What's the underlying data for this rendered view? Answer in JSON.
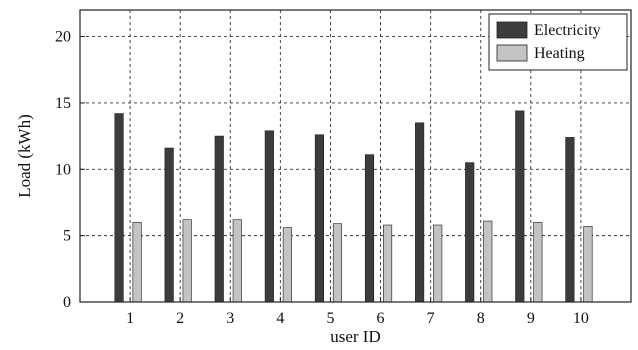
{
  "chart_data": {
    "type": "bar",
    "categories": [
      "1",
      "2",
      "3",
      "4",
      "5",
      "6",
      "7",
      "8",
      "9",
      "10"
    ],
    "series": [
      {
        "name": "Electricity",
        "color": "#3c3c3c",
        "values": [
          14.2,
          11.6,
          12.5,
          12.9,
          12.6,
          11.1,
          13.5,
          10.5,
          14.4,
          12.4
        ]
      },
      {
        "name": "Heating",
        "color": "#c3c3c3",
        "values": [
          6.0,
          6.2,
          6.2,
          5.6,
          5.9,
          5.8,
          5.8,
          6.1,
          6.0,
          5.7
        ]
      }
    ],
    "xlabel": "user ID",
    "ylabel": "Load (kWh)",
    "ylim": [
      0,
      22
    ],
    "yticks": [
      0,
      5,
      10,
      15,
      20
    ],
    "xlim": [
      0,
      11
    ],
    "grid": true,
    "grid_style": "dashed",
    "legend_position": "top-right"
  }
}
